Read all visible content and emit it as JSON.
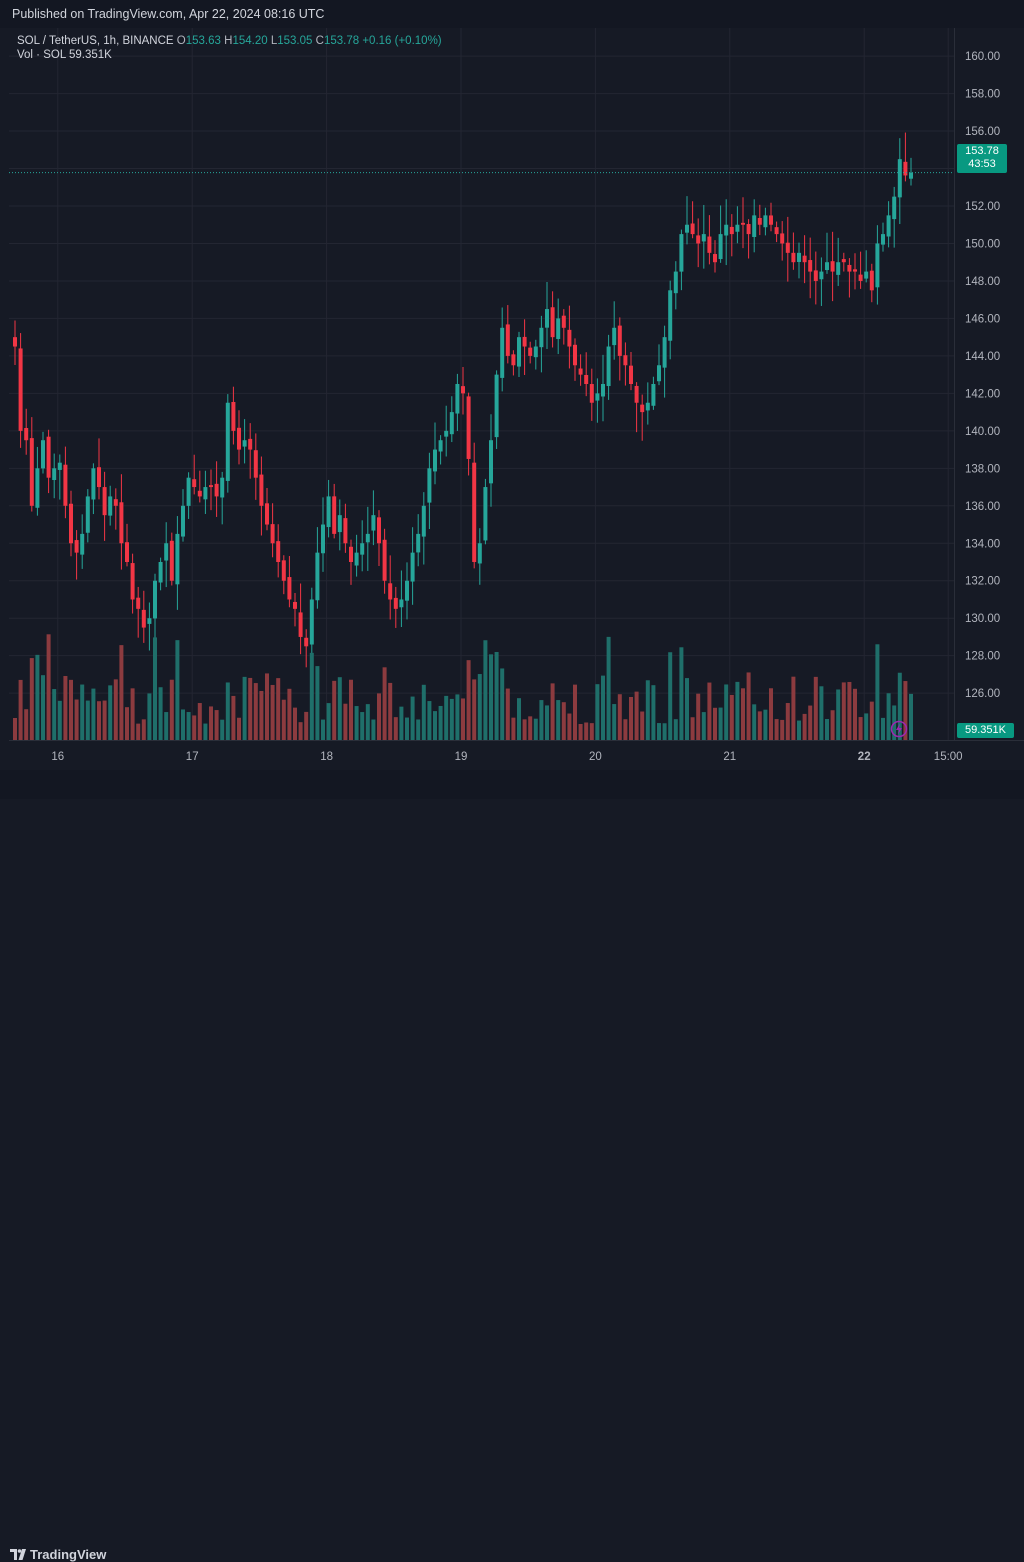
{
  "header": {
    "published": "Published on TradingView.com, Apr 22, 2024 08:16 UTC"
  },
  "legend": {
    "symbol": "SOL / TetherUS, 1h, BINANCE",
    "o_key": "O",
    "o_val": "153.63",
    "h_key": "H",
    "h_val": "154.20",
    "l_key": "L",
    "l_val": "153.05",
    "c_key": "C",
    "c_val": "153.78",
    "change": "+0.16 (+0.10%)",
    "vol_label": "Vol · SOL",
    "vol_val": "59.351K"
  },
  "price_tag": {
    "price": "153.78",
    "countdown": "43:53"
  },
  "volume_tag": "59.351K",
  "footer": {
    "brand": "TradingView"
  },
  "colors": {
    "up": "#26a69a",
    "down": "#f23645",
    "vol_up": "#1f6f6a",
    "vol_down": "#8c3b3f",
    "background": "#161a25",
    "grid": "#232632"
  },
  "chart_data": {
    "type": "candlestick",
    "title": "SOL / TetherUS, 1h, BINANCE",
    "y_ticks": [
      126,
      128,
      130,
      132,
      134,
      136,
      138,
      140,
      142,
      144,
      146,
      148,
      150,
      152,
      154,
      156,
      158,
      160
    ],
    "y_tick_labels": [
      "126.00",
      "128.00",
      "130.00",
      "132.00",
      "134.00",
      "136.00",
      "138.00",
      "140.00",
      "142.00",
      "144.00",
      "146.00",
      "148.00",
      "150.00",
      "152.00",
      "154.00",
      "156.00",
      "158.00",
      "160.00"
    ],
    "ylim": [
      123.5,
      161.5
    ],
    "x_ticks": [
      {
        "label": "16",
        "index": 8,
        "bold": false
      },
      {
        "label": "17",
        "index": 32,
        "bold": false
      },
      {
        "label": "18",
        "index": 56,
        "bold": false
      },
      {
        "label": "19",
        "index": 80,
        "bold": false
      },
      {
        "label": "20",
        "index": 104,
        "bold": false
      },
      {
        "label": "21",
        "index": 128,
        "bold": false
      },
      {
        "label": "22",
        "index": 152,
        "bold": true
      },
      {
        "label": "15:00",
        "index": 167,
        "bold": false
      }
    ],
    "bar_count": 170,
    "last_price": 153.78,
    "checkpoints": [
      [
        0,
        144.5
      ],
      [
        1,
        140.0
      ],
      [
        2,
        139.5
      ],
      [
        3,
        136.0
      ],
      [
        4,
        138.0
      ],
      [
        5,
        139.5
      ],
      [
        6,
        137.5
      ],
      [
        7,
        138.0
      ],
      [
        8,
        138.3
      ],
      [
        9,
        136.0
      ],
      [
        10,
        134.0
      ],
      [
        11,
        133.5
      ],
      [
        12,
        134.5
      ],
      [
        13,
        136.5
      ],
      [
        14,
        138.0
      ],
      [
        15,
        137.0
      ],
      [
        16,
        135.5
      ],
      [
        17,
        136.5
      ],
      [
        18,
        136.0
      ],
      [
        19,
        134.0
      ],
      [
        20,
        133.0
      ],
      [
        21,
        131.0
      ],
      [
        22,
        130.5
      ],
      [
        23,
        129.5
      ],
      [
        24,
        130.0
      ],
      [
        25,
        132.0
      ],
      [
        26,
        133.0
      ],
      [
        27,
        134.0
      ],
      [
        28,
        132.0
      ],
      [
        29,
        134.5
      ],
      [
        30,
        136.0
      ],
      [
        31,
        137.5
      ],
      [
        32,
        137.0
      ],
      [
        33,
        136.5
      ],
      [
        34,
        137.0
      ],
      [
        35,
        137.0
      ],
      [
        36,
        136.5
      ],
      [
        37,
        137.5
      ],
      [
        38,
        141.5
      ],
      [
        39,
        140.0
      ],
      [
        40,
        139.0
      ],
      [
        41,
        139.5
      ],
      [
        42,
        139.0
      ],
      [
        43,
        137.5
      ],
      [
        44,
        136.0
      ],
      [
        45,
        135.0
      ],
      [
        46,
        134.0
      ],
      [
        47,
        133.0
      ],
      [
        48,
        132.0
      ],
      [
        49,
        131.0
      ],
      [
        50,
        130.5
      ],
      [
        51,
        129.0
      ],
      [
        52,
        128.5
      ],
      [
        53,
        131.0
      ],
      [
        54,
        133.5
      ],
      [
        55,
        135.0
      ],
      [
        56,
        136.5
      ],
      [
        57,
        134.5
      ],
      [
        58,
        135.5
      ],
      [
        59,
        134.0
      ],
      [
        60,
        133.0
      ],
      [
        61,
        133.5
      ],
      [
        62,
        134.0
      ],
      [
        63,
        134.5
      ],
      [
        64,
        135.5
      ],
      [
        65,
        134.0
      ],
      [
        66,
        132.0
      ],
      [
        67,
        131.0
      ],
      [
        68,
        130.5
      ],
      [
        69,
        131.0
      ],
      [
        70,
        132.0
      ],
      [
        71,
        133.5
      ],
      [
        72,
        134.5
      ],
      [
        73,
        136.0
      ],
      [
        74,
        138.0
      ],
      [
        75,
        139.0
      ],
      [
        76,
        139.5
      ],
      [
        77,
        140.0
      ],
      [
        78,
        141.0
      ],
      [
        79,
        142.5
      ],
      [
        80,
        142.0
      ],
      [
        81,
        138.5
      ],
      [
        82,
        133.0
      ],
      [
        83,
        134.0
      ],
      [
        84,
        137.0
      ],
      [
        85,
        139.5
      ],
      [
        86,
        143.0
      ],
      [
        87,
        145.5
      ],
      [
        88,
        144.0
      ],
      [
        89,
        143.5
      ],
      [
        90,
        145.0
      ],
      [
        91,
        144.5
      ],
      [
        92,
        144.0
      ],
      [
        93,
        144.5
      ],
      [
        94,
        145.5
      ],
      [
        95,
        146.5
      ],
      [
        96,
        145.0
      ],
      [
        97,
        146.0
      ],
      [
        98,
        145.5
      ],
      [
        99,
        144.5
      ],
      [
        100,
        143.5
      ],
      [
        101,
        143.0
      ],
      [
        102,
        142.5
      ],
      [
        103,
        141.5
      ],
      [
        104,
        142.0
      ],
      [
        105,
        142.5
      ],
      [
        106,
        144.5
      ],
      [
        107,
        145.5
      ],
      [
        108,
        144.0
      ],
      [
        109,
        143.5
      ],
      [
        110,
        142.5
      ],
      [
        111,
        141.5
      ],
      [
        112,
        141.0
      ],
      [
        113,
        141.5
      ],
      [
        114,
        142.5
      ],
      [
        115,
        143.5
      ],
      [
        116,
        145.0
      ],
      [
        117,
        147.5
      ],
      [
        118,
        148.5
      ],
      [
        119,
        150.5
      ],
      [
        120,
        151.0
      ],
      [
        121,
        150.5
      ],
      [
        122,
        150.0
      ],
      [
        123,
        150.5
      ],
      [
        124,
        149.5
      ],
      [
        125,
        149.0
      ],
      [
        126,
        150.5
      ],
      [
        127,
        151.0
      ],
      [
        128,
        150.5
      ],
      [
        129,
        151.0
      ],
      [
        130,
        151.0
      ],
      [
        131,
        150.5
      ],
      [
        132,
        151.5
      ],
      [
        133,
        151.0
      ],
      [
        134,
        151.5
      ],
      [
        135,
        151.0
      ],
      [
        136,
        150.5
      ],
      [
        137,
        150.0
      ],
      [
        138,
        149.5
      ],
      [
        139,
        149.0
      ],
      [
        140,
        149.5
      ],
      [
        141,
        149.0
      ],
      [
        142,
        148.5
      ],
      [
        143,
        148.0
      ],
      [
        144,
        148.5
      ],
      [
        145,
        149.0
      ],
      [
        146,
        148.5
      ],
      [
        147,
        149.0
      ],
      [
        148,
        149.0
      ],
      [
        149,
        148.5
      ],
      [
        150,
        148.5
      ],
      [
        151,
        148.0
      ],
      [
        152,
        148.5
      ],
      [
        153,
        147.5
      ],
      [
        154,
        150.0
      ],
      [
        155,
        150.5
      ],
      [
        156,
        151.5
      ],
      [
        157,
        152.5
      ],
      [
        158,
        154.5
      ],
      [
        159,
        153.63
      ],
      [
        160,
        153.78
      ]
    ],
    "volume_max_k": 600
  }
}
